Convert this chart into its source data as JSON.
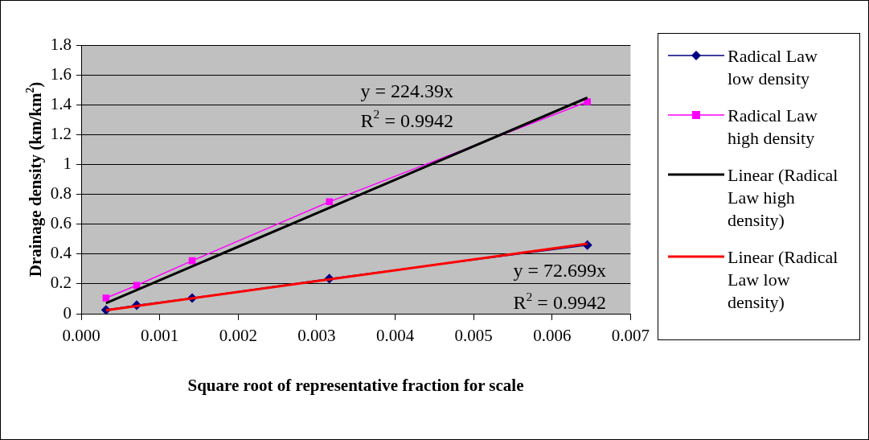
{
  "chart_data": {
    "type": "line",
    "xlabel": "Square root of representative fraction for scale",
    "ylabel": "Drainage density (km/km$^{2}$)",
    "xlim": [
      0,
      0.007
    ],
    "xticks": [
      {
        "value": 0,
        "label": "0.000"
      },
      {
        "value": 0.001,
        "label": "0.001"
      },
      {
        "value": 0.002,
        "label": "0.002"
      },
      {
        "value": 0.003,
        "label": "0.003"
      },
      {
        "value": 0.004,
        "label": "0.004"
      },
      {
        "value": 0.005,
        "label": "0.005"
      },
      {
        "value": 0.006,
        "label": "0.006"
      },
      {
        "value": 0.007,
        "label": "0.007"
      }
    ],
    "ylim": [
      0,
      1.8
    ],
    "yticks": [
      0,
      0.2,
      0.4,
      0.6,
      0.8,
      1,
      1.2,
      1.4,
      1.6,
      1.8
    ],
    "grid": "y",
    "legend": "right",
    "series": [
      {
        "name": "Radical Law low density",
        "color": "#000080",
        "marker": "diamond",
        "x": [
          0.000316,
          0.000707,
          0.001414,
          0.003162,
          0.00645
        ],
        "values": [
          0.025,
          0.057,
          0.105,
          0.235,
          0.46
        ]
      },
      {
        "name": "Radical Law high density",
        "color": "#ff00ff",
        "marker": "square",
        "x": [
          0.000316,
          0.000707,
          0.001414,
          0.003162,
          0.00645
        ],
        "values": [
          0.105,
          0.19,
          0.355,
          0.75,
          1.42
        ]
      },
      {
        "name": "Linear (Radical Law high density)",
        "color": "#000000",
        "marker": "none",
        "x": [
          0.000316,
          0.00645
        ],
        "values": [
          0.071,
          1.447
        ]
      },
      {
        "name": "Linear (Radical Law low density)",
        "color": "#ff0000",
        "marker": "none",
        "x": [
          0.000316,
          0.00645
        ],
        "values": [
          0.023,
          0.469
        ]
      }
    ],
    "annotations": [
      "y = 224.39x",
      "R$^{2}$ = 0.9942",
      "y = 72.699x",
      "R$^{2}$ = 0.9942"
    ]
  }
}
